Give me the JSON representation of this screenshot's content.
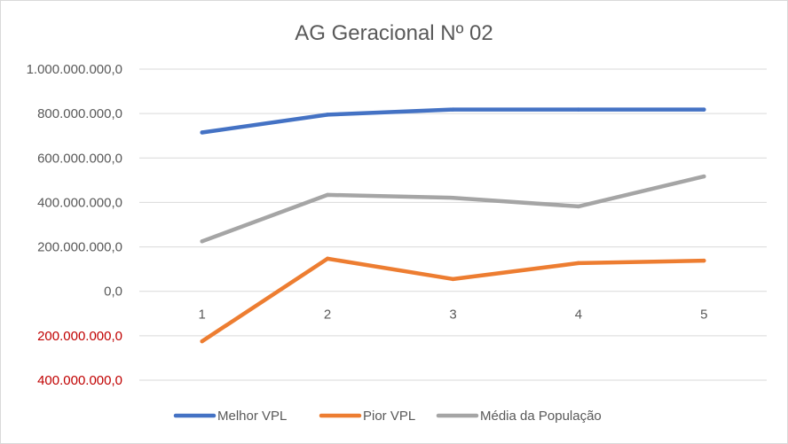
{
  "chart_data": {
    "type": "line",
    "title": "AG Geracional Nº 02",
    "categories": [
      "1",
      "2",
      "3",
      "4",
      "5"
    ],
    "ylim": [
      -400000000,
      1000000000
    ],
    "ytick_values": [
      1000000000,
      800000000,
      600000000,
      400000000,
      200000000,
      0,
      -200000000,
      -400000000
    ],
    "ytick_labels": [
      "1.000.000.000,0",
      "800.000.000,0",
      "600.000.000,0",
      "400.000.000,0",
      "200.000.000,0",
      "0,0",
      "200.000.000,0",
      "400.000.000,0"
    ],
    "grid": true,
    "legend_position": "bottom",
    "series": [
      {
        "name": "Melhor VPL",
        "color": "#4472c4",
        "values": [
          715000000,
          795000000,
          818000000,
          818000000,
          818000000
        ]
      },
      {
        "name": "Pior VPL",
        "color": "#ed7d31",
        "values": [
          -225000000,
          147000000,
          55000000,
          127000000,
          138000000
        ]
      },
      {
        "name": "Média da População",
        "color": "#a5a5a5",
        "values": [
          225000000,
          434000000,
          421000000,
          382000000,
          517000000
        ]
      }
    ],
    "negative_label_color": "#c00000"
  }
}
